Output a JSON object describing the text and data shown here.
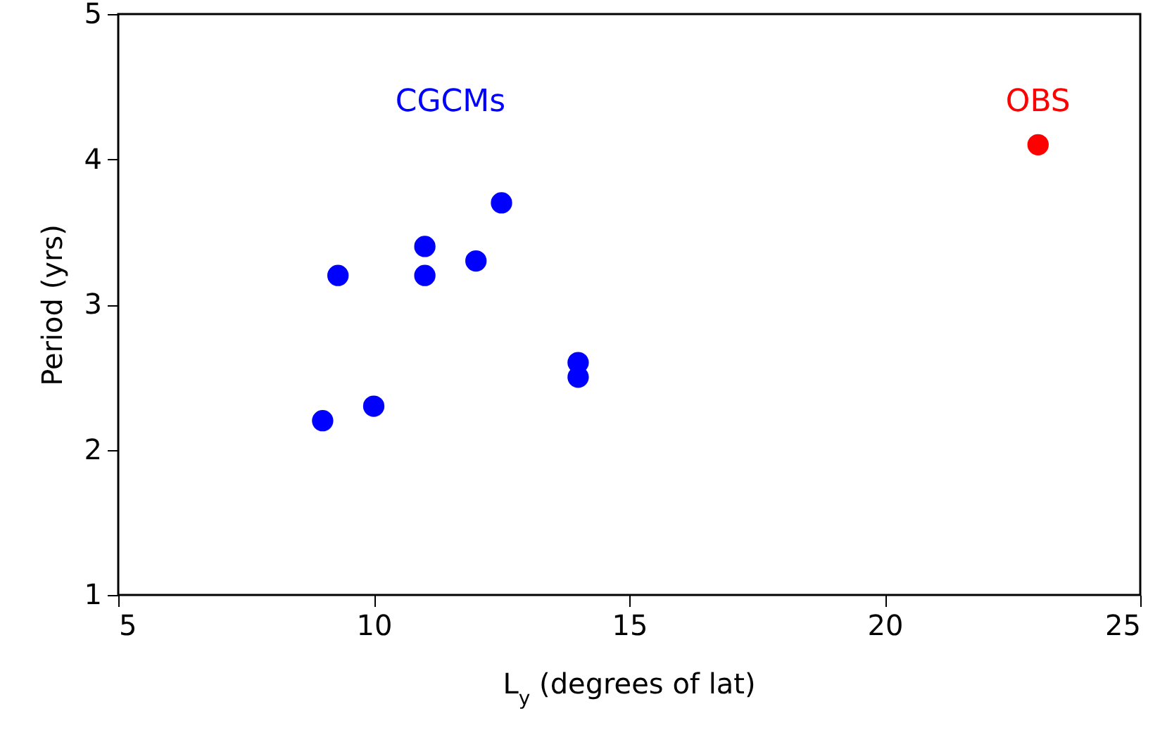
{
  "chart_data": {
    "type": "scatter",
    "xlabel": "L$_{y}$ (degrees of lat)",
    "ylabel": "Period (yrs)",
    "xlim": [
      5,
      25
    ],
    "xticks": [
      5,
      10,
      15,
      20,
      25
    ],
    "ylim": [
      1,
      5
    ],
    "yticks": [
      1,
      2,
      3,
      4,
      5
    ],
    "marker": "circle",
    "series": [
      {
        "name": "CGCMs",
        "color": "#0000ff",
        "x": [
          9,
          9.3,
          10,
          11,
          11,
          12,
          12.5,
          14,
          14
        ],
        "values": [
          2.2,
          3.2,
          2.3,
          3.4,
          3.2,
          3.3,
          3.7,
          2.6,
          2.5
        ]
      },
      {
        "name": "OBS",
        "color": "#ff0000",
        "x": [
          23
        ],
        "values": [
          4.1
        ]
      }
    ]
  }
}
